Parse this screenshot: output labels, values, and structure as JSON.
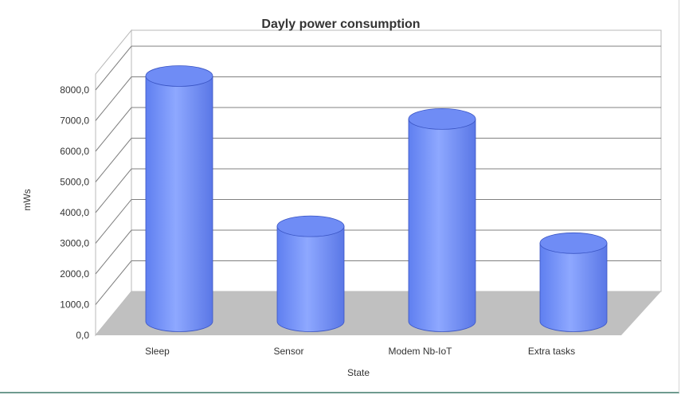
{
  "chart_data": {
    "type": "bar",
    "title": "Dayly power consumption",
    "xlabel": "State",
    "ylabel": "mWs",
    "categories": [
      "Sleep",
      "Sensor",
      "Modem Nb-IoT",
      "Extra tasks"
    ],
    "values": [
      8000,
      3100,
      6600,
      2550
    ],
    "ylim": [
      0,
      8000
    ],
    "yticks": [
      "0,0",
      "1000,0",
      "2000,0",
      "3000,0",
      "4000,0",
      "5000,0",
      "6000,0",
      "7000,0",
      "8000,0"
    ],
    "bar_shape": "cylinder",
    "bar_color": "#7b96f5",
    "floor_color": "#c0c0c0",
    "grid": true,
    "legend": "none"
  }
}
